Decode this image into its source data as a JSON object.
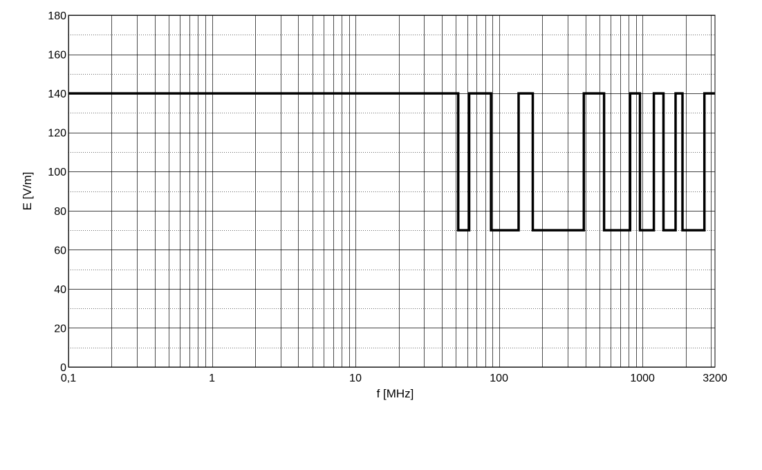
{
  "chart_data": {
    "type": "line",
    "title": "",
    "xlabel": "f [MHz]",
    "ylabel": "E [V/m]",
    "x_scale": "log",
    "xlim": [
      0.1,
      3200
    ],
    "ylim": [
      0,
      180
    ],
    "x_ticks": [
      {
        "value": 0.1,
        "label": "0,1"
      },
      {
        "value": 1,
        "label": "1"
      },
      {
        "value": 10,
        "label": "10"
      },
      {
        "value": 100,
        "label": "100"
      },
      {
        "value": 1000,
        "label": "1000"
      },
      {
        "value": 3200,
        "label": "3200"
      }
    ],
    "y_ticks": [
      0,
      20,
      40,
      60,
      80,
      100,
      120,
      140,
      160,
      180
    ],
    "grid": true,
    "legend": "none",
    "line_color": "#000000",
    "series": [
      {
        "x": [
          0.1,
          52,
          52,
          62,
          62,
          88,
          88,
          137,
          137,
          172,
          172,
          390,
          390,
          540,
          540,
          820,
          820,
          960,
          960,
          1200,
          1200,
          1400,
          1400,
          1700,
          1700,
          1900,
          1900,
          2700,
          2700,
          3200
        ],
        "y": [
          140,
          140,
          70,
          70,
          140,
          140,
          70,
          70,
          140,
          140,
          70,
          70,
          140,
          140,
          70,
          70,
          140,
          140,
          70,
          70,
          140,
          140,
          70,
          70,
          140,
          140,
          70,
          70,
          140,
          140
        ]
      }
    ]
  }
}
